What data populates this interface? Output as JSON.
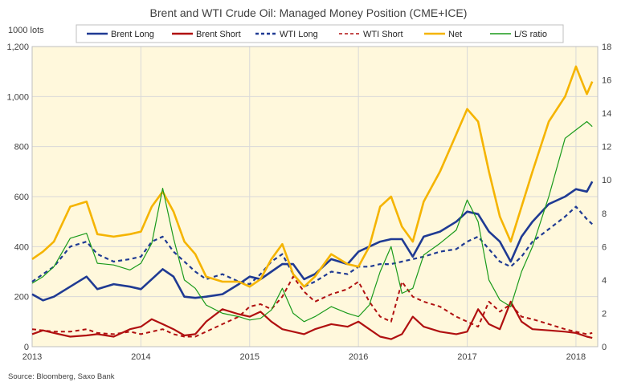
{
  "chart_data": {
    "type": "line",
    "title": "Brent and WTI Crude Oil: Managed Money Position (CME+ICE)",
    "y_unit_label": "1000 lots",
    "source": "Source: Bloomberg, Saxo Bank",
    "x_range": [
      2013.0,
      2018.2
    ],
    "x_tick_labels": [
      "2013",
      "2014",
      "2015",
      "2016",
      "2017",
      "2018"
    ],
    "x_tick_values": [
      2013,
      2014,
      2015,
      2016,
      2017,
      2018
    ],
    "y_left": {
      "range": [
        0,
        1200
      ],
      "ticks": [
        0,
        200,
        400,
        600,
        800,
        1000,
        1200
      ],
      "tick_labels": [
        "0",
        "200",
        "400",
        "600",
        "800",
        "1,000",
        "1,200"
      ]
    },
    "y_right": {
      "range": [
        0,
        18
      ],
      "ticks": [
        0,
        2,
        4,
        6,
        8,
        10,
        12,
        14,
        16,
        18
      ],
      "tick_labels": [
        "0",
        "2",
        "4",
        "6",
        "8",
        "10",
        "12",
        "14",
        "16",
        "18"
      ]
    },
    "grid": true,
    "legend_position": "top",
    "series": [
      {
        "name": "Brent Long",
        "axis": "left",
        "color": "#1f3a93",
        "dash": "solid",
        "width": 2.6,
        "x": [
          2013.0,
          2013.1,
          2013.2,
          2013.35,
          2013.5,
          2013.6,
          2013.75,
          2013.9,
          2014.0,
          2014.1,
          2014.2,
          2014.3,
          2014.4,
          2014.5,
          2014.6,
          2014.75,
          2014.9,
          2015.0,
          2015.1,
          2015.2,
          2015.3,
          2015.4,
          2015.5,
          2015.6,
          2015.75,
          2015.9,
          2016.0,
          2016.1,
          2016.2,
          2016.3,
          2016.4,
          2016.5,
          2016.6,
          2016.75,
          2016.9,
          2017.0,
          2017.1,
          2017.2,
          2017.3,
          2017.4,
          2017.5,
          2017.6,
          2017.75,
          2017.9,
          2018.0,
          2018.1,
          2018.15
        ],
        "values": [
          210,
          185,
          200,
          240,
          280,
          230,
          250,
          240,
          230,
          270,
          310,
          280,
          200,
          195,
          200,
          210,
          250,
          280,
          270,
          300,
          330,
          330,
          270,
          290,
          350,
          330,
          380,
          400,
          420,
          430,
          430,
          360,
          440,
          460,
          500,
          540,
          530,
          460,
          420,
          340,
          440,
          500,
          570,
          600,
          630,
          620,
          660
        ]
      },
      {
        "name": "Brent Short",
        "axis": "left",
        "color": "#b01010",
        "dash": "solid",
        "width": 2.2,
        "x": [
          2013.0,
          2013.1,
          2013.2,
          2013.35,
          2013.5,
          2013.6,
          2013.75,
          2013.9,
          2014.0,
          2014.1,
          2014.2,
          2014.3,
          2014.4,
          2014.5,
          2014.6,
          2014.75,
          2014.9,
          2015.0,
          2015.1,
          2015.2,
          2015.3,
          2015.4,
          2015.5,
          2015.6,
          2015.75,
          2015.9,
          2016.0,
          2016.1,
          2016.2,
          2016.3,
          2016.4,
          2016.5,
          2016.6,
          2016.75,
          2016.9,
          2017.0,
          2017.1,
          2017.2,
          2017.3,
          2017.4,
          2017.5,
          2017.6,
          2017.75,
          2017.9,
          2018.0,
          2018.1,
          2018.15
        ],
        "values": [
          50,
          65,
          55,
          40,
          45,
          50,
          40,
          70,
          80,
          110,
          90,
          70,
          45,
          50,
          100,
          150,
          130,
          120,
          140,
          100,
          70,
          60,
          50,
          70,
          90,
          80,
          100,
          70,
          40,
          30,
          50,
          120,
          80,
          60,
          50,
          60,
          150,
          90,
          70,
          180,
          100,
          70,
          65,
          60,
          55,
          40,
          35
        ]
      },
      {
        "name": "WTI Long",
        "axis": "left",
        "color": "#1f3a93",
        "dash": "5,4",
        "width": 2.2,
        "x": [
          2013.0,
          2013.1,
          2013.2,
          2013.35,
          2013.5,
          2013.6,
          2013.75,
          2013.9,
          2014.0,
          2014.1,
          2014.2,
          2014.3,
          2014.4,
          2014.5,
          2014.6,
          2014.75,
          2014.9,
          2015.0,
          2015.1,
          2015.2,
          2015.3,
          2015.4,
          2015.5,
          2015.6,
          2015.75,
          2015.9,
          2016.0,
          2016.1,
          2016.2,
          2016.3,
          2016.4,
          2016.5,
          2016.6,
          2016.75,
          2016.9,
          2017.0,
          2017.1,
          2017.2,
          2017.3,
          2017.4,
          2017.5,
          2017.6,
          2017.75,
          2017.9,
          2018.0,
          2018.1,
          2018.15
        ],
        "values": [
          260,
          290,
          320,
          400,
          420,
          370,
          340,
          350,
          360,
          420,
          440,
          380,
          340,
          300,
          270,
          290,
          260,
          250,
          290,
          340,
          370,
          290,
          240,
          260,
          300,
          290,
          320,
          320,
          330,
          330,
          340,
          350,
          360,
          380,
          390,
          420,
          440,
          390,
          340,
          320,
          360,
          420,
          470,
          520,
          560,
          510,
          490
        ]
      },
      {
        "name": "WTI Short",
        "axis": "left",
        "color": "#b01010",
        "dash": "5,4",
        "width": 2.0,
        "x": [
          2013.0,
          2013.1,
          2013.2,
          2013.35,
          2013.5,
          2013.6,
          2013.75,
          2013.9,
          2014.0,
          2014.1,
          2014.2,
          2014.3,
          2014.4,
          2014.5,
          2014.6,
          2014.75,
          2014.9,
          2015.0,
          2015.1,
          2015.2,
          2015.3,
          2015.4,
          2015.5,
          2015.6,
          2015.75,
          2015.9,
          2016.0,
          2016.1,
          2016.2,
          2016.3,
          2016.4,
          2016.5,
          2016.6,
          2016.75,
          2016.9,
          2017.0,
          2017.1,
          2017.2,
          2017.3,
          2017.4,
          2017.5,
          2017.6,
          2017.75,
          2017.9,
          2018.0,
          2018.1,
          2018.15
        ],
        "values": [
          70,
          65,
          60,
          60,
          70,
          55,
          50,
          60,
          50,
          60,
          70,
          50,
          40,
          40,
          60,
          90,
          120,
          160,
          170,
          150,
          200,
          280,
          220,
          180,
          210,
          230,
          260,
          180,
          120,
          100,
          260,
          200,
          180,
          160,
          120,
          100,
          80,
          180,
          140,
          170,
          120,
          110,
          90,
          70,
          60,
          50,
          55
        ]
      },
      {
        "name": "Net",
        "axis": "left",
        "color": "#f5b400",
        "dash": "solid",
        "width": 2.6,
        "x": [
          2013.0,
          2013.1,
          2013.2,
          2013.35,
          2013.5,
          2013.6,
          2013.75,
          2013.9,
          2014.0,
          2014.1,
          2014.2,
          2014.3,
          2014.4,
          2014.5,
          2014.6,
          2014.75,
          2014.9,
          2015.0,
          2015.1,
          2015.2,
          2015.3,
          2015.4,
          2015.5,
          2015.6,
          2015.75,
          2015.9,
          2016.0,
          2016.1,
          2016.2,
          2016.3,
          2016.4,
          2016.5,
          2016.6,
          2016.75,
          2016.9,
          2017.0,
          2017.1,
          2017.2,
          2017.3,
          2017.4,
          2017.5,
          2017.6,
          2017.75,
          2017.9,
          2018.0,
          2018.1,
          2018.15
        ],
        "values": [
          350,
          380,
          420,
          560,
          580,
          450,
          440,
          450,
          460,
          560,
          620,
          540,
          420,
          370,
          280,
          260,
          260,
          240,
          270,
          350,
          410,
          290,
          240,
          280,
          370,
          330,
          320,
          400,
          560,
          600,
          480,
          420,
          580,
          700,
          850,
          950,
          900,
          700,
          520,
          420,
          560,
          700,
          900,
          1000,
          1120,
          1010,
          1060
        ]
      },
      {
        "name": "L/S ratio",
        "axis": "right",
        "color": "#1a9a1a",
        "dash": "solid",
        "width": 1.2,
        "x": [
          2013.0,
          2013.1,
          2013.2,
          2013.35,
          2013.5,
          2013.6,
          2013.75,
          2013.9,
          2014.0,
          2014.1,
          2014.2,
          2014.3,
          2014.4,
          2014.5,
          2014.6,
          2014.75,
          2014.9,
          2015.0,
          2015.1,
          2015.2,
          2015.3,
          2015.4,
          2015.5,
          2015.6,
          2015.75,
          2015.9,
          2016.0,
          2016.1,
          2016.2,
          2016.3,
          2016.4,
          2016.5,
          2016.6,
          2016.75,
          2016.9,
          2017.0,
          2017.1,
          2017.2,
          2017.3,
          2017.4,
          2017.5,
          2017.6,
          2017.75,
          2017.9,
          2018.0,
          2018.1,
          2018.15
        ],
        "values": [
          3.8,
          4.2,
          4.8,
          6.5,
          6.8,
          5.0,
          4.9,
          4.6,
          5.0,
          6.2,
          9.5,
          6.5,
          4.0,
          3.5,
          2.5,
          2.0,
          1.8,
          1.6,
          1.7,
          2.2,
          3.5,
          2.0,
          1.5,
          1.8,
          2.4,
          2.0,
          1.8,
          2.5,
          4.5,
          6.0,
          3.2,
          3.5,
          5.5,
          6.2,
          7.0,
          8.8,
          7.5,
          4.0,
          2.8,
          2.4,
          4.5,
          6.0,
          9.0,
          12.5,
          13.0,
          13.5,
          13.2
        ]
      }
    ]
  }
}
